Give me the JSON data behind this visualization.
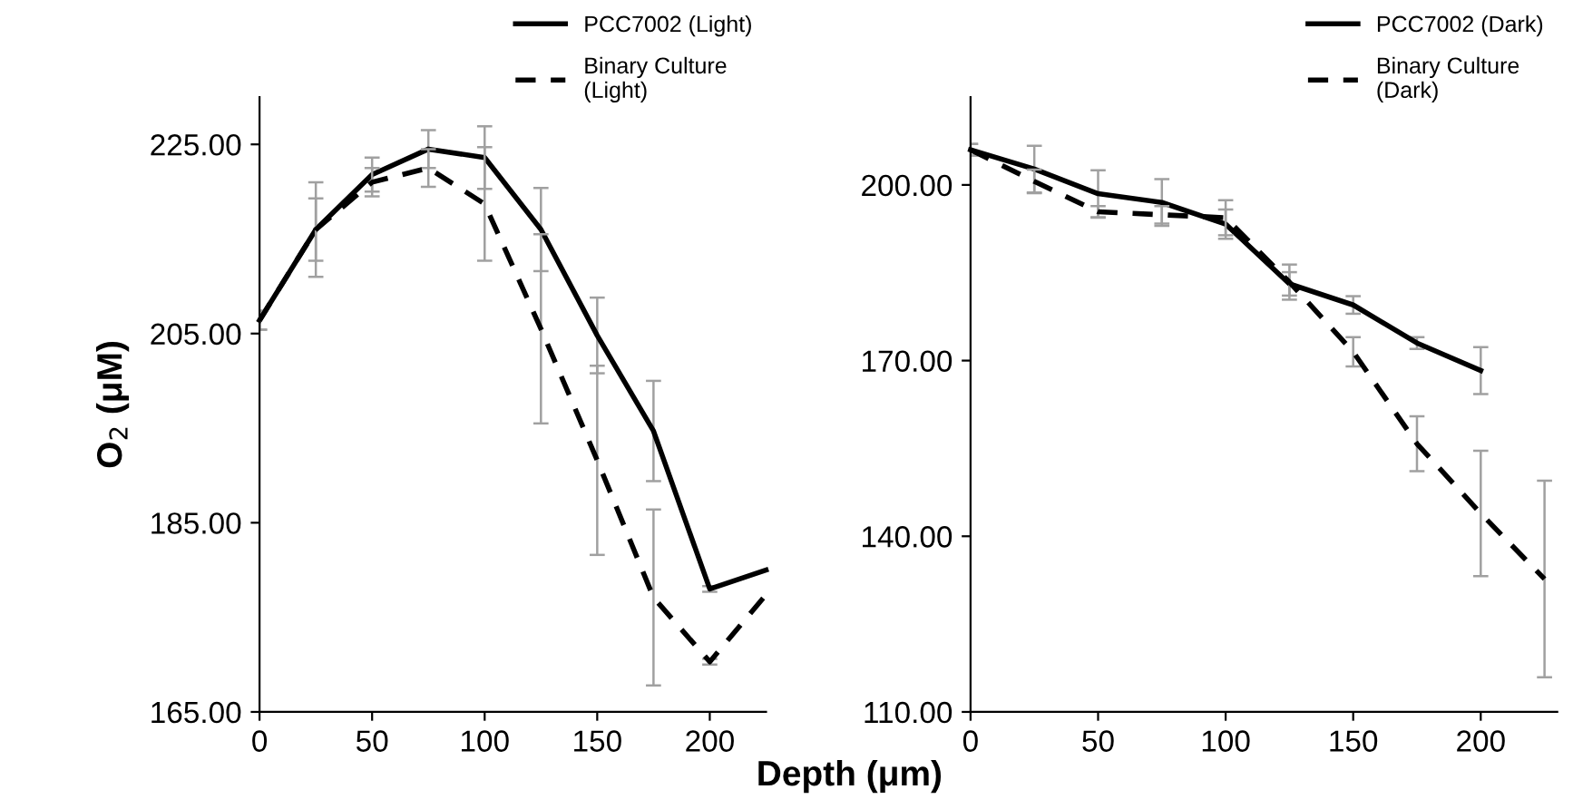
{
  "chart_data": [
    {
      "type": "line",
      "ylabel": "O$_{2}$ (μM)",
      "x": [
        0,
        25,
        50,
        75,
        100,
        125,
        150,
        175,
        200,
        225
      ],
      "xlim": [
        0,
        225
      ],
      "xticks": [
        0,
        50,
        100,
        150,
        200
      ],
      "ylim": [
        165,
        230
      ],
      "yticks": [
        {
          "value": 165,
          "label": "165.00"
        },
        {
          "value": 185,
          "label": "185.00"
        },
        {
          "value": 205,
          "label": "205.00"
        },
        {
          "value": 225,
          "label": "225.00"
        }
      ],
      "grid": false,
      "legend": "top right",
      "marker": "none",
      "series": [
        {
          "name": "PCC7002 (Light)",
          "color": "#000000",
          "line_style": "solid",
          "values": [
            206.4,
            216.0,
            221.8,
            224.5,
            223.6,
            216.0,
            204.8,
            194.7,
            178.0,
            180.0
          ],
          "errors": [
            1,
            3.3,
            1.8,
            2,
            3.3,
            4.4,
            4,
            5.3,
            0.3,
            null
          ]
        },
        {
          "name": "Binary Culture\n(Light)",
          "color": "#000000",
          "line_style": "dashed",
          "values": [
            206.4,
            216.0,
            221.0,
            222.5,
            218.7,
            205.5,
            191.6,
            177.1,
            170.3,
            177.4
          ],
          "errors": [
            1,
            5,
            1.5,
            2,
            6,
            10,
            10,
            9.3,
            0.3,
            null
          ]
        }
      ]
    },
    {
      "type": "line",
      "xlabel": "Depth (μm)",
      "x": [
        0,
        25,
        50,
        75,
        100,
        125,
        150,
        175,
        200,
        225
      ],
      "xlim": [
        0,
        230
      ],
      "xticks": [
        0,
        50,
        100,
        150,
        200
      ],
      "ylim": [
        110,
        215
      ],
      "yticks": [
        {
          "value": 110,
          "label": "110.00"
        },
        {
          "value": 140,
          "label": "140.00"
        },
        {
          "value": 170,
          "label": "170.00"
        },
        {
          "value": 200,
          "label": "200.00"
        }
      ],
      "grid": false,
      "legend": "top right",
      "marker": "none",
      "series": [
        {
          "name": "PCC7002 (Dark)",
          "color": "#000000",
          "line_style": "solid",
          "values": [
            206.0,
            202.7,
            198.5,
            197.0,
            193.3,
            183.1,
            179.5,
            173.0,
            168.3,
            null
          ],
          "errors": [
            1,
            4,
            4,
            4,
            2.5,
            2,
            1.5,
            1,
            4,
            null
          ]
        },
        {
          "name": "Binary Culture\n(Dark)",
          "color": "#000000",
          "line_style": "dashed",
          "values": [
            206.0,
            200.6,
            195.4,
            194.9,
            194.4,
            183.4,
            171.5,
            155.8,
            143.9,
            132.7
          ],
          "errors": [
            1,
            2,
            1,
            1.5,
            3,
            3,
            2.5,
            4.7,
            10.7,
            16.8
          ]
        }
      ]
    }
  ]
}
